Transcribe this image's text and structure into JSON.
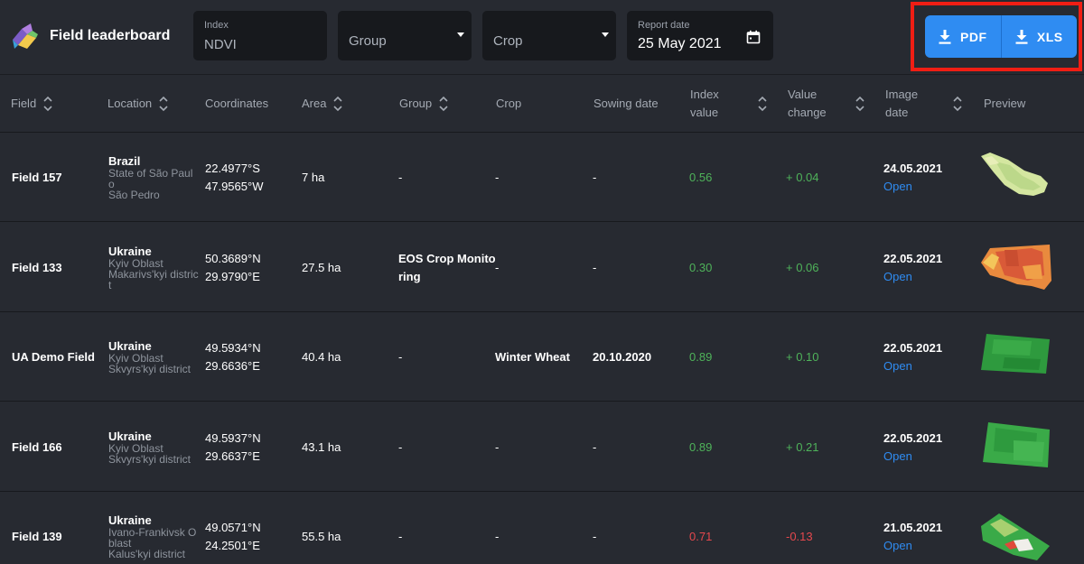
{
  "app": {
    "title": "Field leaderboard"
  },
  "filters": {
    "index": {
      "label": "Index",
      "value": "NDVI"
    },
    "group": {
      "placeholder": "Group"
    },
    "crop": {
      "placeholder": "Crop"
    },
    "report_date": {
      "label": "Report date",
      "value": "25 May 2021"
    }
  },
  "export": {
    "pdf_label": "PDF",
    "xls_label": "XLS"
  },
  "colors": {
    "accent": "#2f8cf2",
    "positive": "#4fb35a",
    "negative": "#e5484d",
    "highlight": "#f01e14"
  },
  "table": {
    "columns": {
      "field": "Field",
      "location": "Location",
      "coordinates": "Coordinates",
      "area": "Area",
      "group": "Group",
      "crop": "Crop",
      "sowing_date": "Sowing date",
      "index_value_1": "Index",
      "index_value_2": "value",
      "value_change_1": "Value",
      "value_change_2": "change",
      "image_date_1": "Image",
      "image_date_2": "date",
      "preview": "Preview"
    },
    "rows": [
      {
        "field": "Field 157",
        "country": "Brazil",
        "region": "State of São Paulo",
        "district": "São Pedro",
        "lat": "22.4977°S",
        "lon": "47.9565°W",
        "area": "7 ha",
        "group": "-",
        "crop": "-",
        "sowing_date": "-",
        "index_value": "0.56",
        "value_change": "+ 0.04",
        "image_date": "24.05.2021",
        "open": "Open"
      },
      {
        "field": "Field 133",
        "country": "Ukraine",
        "region": "Kyiv Oblast",
        "district": "Makarivs'kyi district",
        "lat": "50.3689°N",
        "lon": "29.9790°E",
        "area": "27.5 ha",
        "group": "EOS Crop Monitoring",
        "crop": "-",
        "sowing_date": "-",
        "index_value": "0.30",
        "value_change": "+ 0.06",
        "image_date": "22.05.2021",
        "open": "Open"
      },
      {
        "field": "UA Demo Field",
        "country": "Ukraine",
        "region": "Kyiv Oblast",
        "district": "Skvyrs'kyi district",
        "lat": "49.5934°N",
        "lon": "29.6636°E",
        "area": "40.4 ha",
        "group": "-",
        "crop": "Winter Wheat",
        "sowing_date": "20.10.2020",
        "index_value": "0.89",
        "value_change": "+ 0.10",
        "image_date": "22.05.2021",
        "open": "Open"
      },
      {
        "field": "Field 166",
        "country": "Ukraine",
        "region": "Kyiv Oblast",
        "district": "Skvyrs'kyi district",
        "lat": "49.5937°N",
        "lon": "29.6637°E",
        "area": "43.1 ha",
        "group": "-",
        "crop": "-",
        "sowing_date": "-",
        "index_value": "0.89",
        "value_change": "+ 0.21",
        "image_date": "22.05.2021",
        "open": "Open"
      },
      {
        "field": "Field 139",
        "country": "Ukraine",
        "region": "Ivano-Frankivsk Oblast",
        "district": "Kalus'kyi district",
        "lat": "49.0571°N",
        "lon": "24.2501°E",
        "area": "55.5 ha",
        "group": "-",
        "crop": "-",
        "sowing_date": "-",
        "index_value": "0.71",
        "value_change": "-0.13",
        "image_date": "21.05.2021",
        "open": "Open"
      }
    ]
  }
}
